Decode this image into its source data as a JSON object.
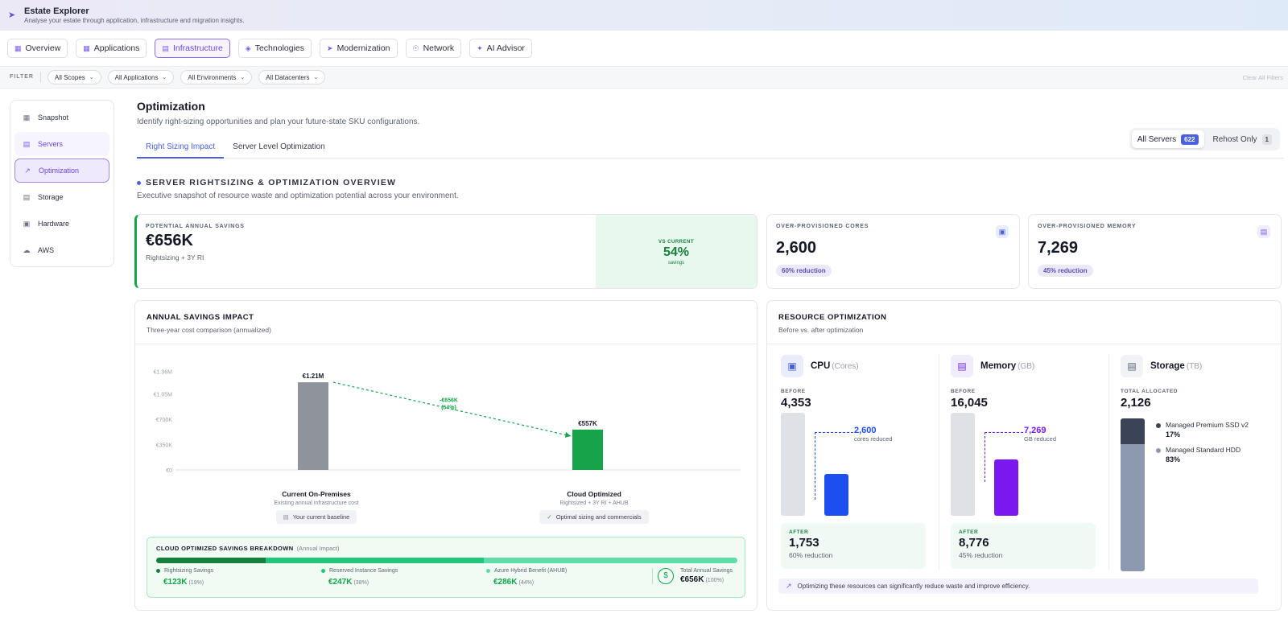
{
  "app": {
    "title": "Estate Explorer",
    "subtitle": "Analyse your estate through application, infrastructure and migration insights."
  },
  "nav_tabs": [
    {
      "label": "Overview",
      "icon": "grid-icon"
    },
    {
      "label": "Applications",
      "icon": "apps-icon"
    },
    {
      "label": "Infrastructure",
      "icon": "server-icon",
      "active": true
    },
    {
      "label": "Technologies",
      "icon": "layers-icon"
    },
    {
      "label": "Modernization",
      "icon": "rocket-icon"
    },
    {
      "label": "Network",
      "icon": "network-icon"
    },
    {
      "label": "AI Advisor",
      "icon": "sparkle-icon"
    }
  ],
  "filters": {
    "label": "FILTER",
    "scopes": "All Scopes",
    "applications": "All Applications",
    "environments": "All Environments",
    "datacenters": "All Datacenters",
    "clear": "Clear All Filters"
  },
  "sidebar": {
    "items": [
      {
        "label": "Snapshot",
        "icon": "grid-icon"
      },
      {
        "label": "Servers",
        "icon": "server-icon"
      },
      {
        "label": "Optimization",
        "icon": "trend-icon",
        "active": true
      },
      {
        "label": "Storage",
        "icon": "drive-icon"
      },
      {
        "label": "Hardware",
        "icon": "chip-icon"
      },
      {
        "label": "AWS",
        "icon": "cloud-icon"
      }
    ]
  },
  "page": {
    "title": "Optimization",
    "subtitle": "Identify right-sizing opportunities and plan your future-state SKU configurations."
  },
  "subtabs": {
    "right_sizing": "Right Sizing Impact",
    "server_level": "Server Level Optimization"
  },
  "segment": {
    "all_label": "All Servers",
    "all_count": "622",
    "rehost_label": "Rehost Only",
    "rehost_count": "1"
  },
  "section": {
    "title": "SERVER RIGHTSIZING & OPTIMIZATION OVERVIEW",
    "subtitle": "Executive snapshot of resource waste and optimization potential across your environment."
  },
  "kpis": {
    "savings": {
      "label": "POTENTIAL ANNUAL SAVINGS",
      "value": "€656K",
      "note": "Rightsizing + 3Y RI",
      "vs_label": "VS CURRENT",
      "vs_value": "54%",
      "vs_note": "savings"
    },
    "cores": {
      "label": "OVER-PROVISIONED CORES",
      "value": "2,600",
      "pill": "60% reduction"
    },
    "memory": {
      "label": "OVER-PROVISIONED MEMORY",
      "value": "7,269",
      "pill": "45% reduction"
    }
  },
  "annual": {
    "title": "ANNUAL SAVINGS IMPACT",
    "subtitle": "Three-year cost comparison (annualized)",
    "left_name": "Current On-Premises",
    "left_desc": "Existing annual infrastructure cost",
    "left_tag": "Your current baseline",
    "right_name": "Cloud Optimized",
    "right_desc": "Rightsized + 3Y RI + AHUB",
    "right_tag": "Optimal sizing and commercials",
    "delta_line1": "-€656K",
    "delta_line2": "(54%)"
  },
  "chart_data": {
    "type": "bar",
    "categories": [
      "Current On-Premises",
      "Cloud Optimized"
    ],
    "values": [
      1.21,
      0.557
    ],
    "value_labels": [
      "€1.21M",
      "€557K"
    ],
    "ytick_values": [
      0,
      0.35,
      0.7,
      1.05,
      1.36
    ],
    "ytick_labels": [
      "€0",
      "€350K",
      "€700K",
      "€1.05M",
      "€1.36M"
    ],
    "ylim": [
      0,
      1.4
    ],
    "colors": [
      "#8e939c",
      "#16a34a"
    ],
    "title": "",
    "xlabel": "",
    "ylabel": ""
  },
  "breakdown": {
    "title": "CLOUD OPTIMIZED SAVINGS BREAKDOWN",
    "subtitle": "(Annual Impact)",
    "items": [
      {
        "name": "Rightsizing Savings",
        "value": "€123K",
        "pct": "(19%)",
        "fraction": 0.19,
        "color": "#15803d"
      },
      {
        "name": "Reserved Instance Savings",
        "value": "€247K",
        "pct": "(38%)",
        "fraction": 0.38,
        "color": "#22c57a"
      },
      {
        "name": "Azure Hybrid Benefit (AHUB)",
        "value": "€286K",
        "pct": "(44%)",
        "fraction": 0.44,
        "color": "#5eddaa"
      }
    ],
    "total_label": "Total Annual Savings",
    "total_value": "€656K",
    "total_pct": "(100%)"
  },
  "resource": {
    "title": "RESOURCE OPTIMIZATION",
    "subtitle": "Before vs. after optimization",
    "cpu": {
      "name": "CPU",
      "unit": "(Cores)",
      "before_label": "BEFORE",
      "before": "4,353",
      "reduced": "2,600",
      "reduced_label": "cores reduced",
      "after_label": "AFTER",
      "after": "1,753",
      "after_note": "60% reduction",
      "before_num": 4353,
      "after_num": 1753
    },
    "memory": {
      "name": "Memory",
      "unit": "(GB)",
      "before_label": "BEFORE",
      "before": "16,045",
      "reduced": "7,269",
      "reduced_label": "GB reduced",
      "after_label": "AFTER",
      "after": "8,776",
      "after_note": "45% reduction",
      "before_num": 16045,
      "after_num": 8776
    },
    "storage": {
      "name": "Storage",
      "unit": "(TB)",
      "total_label": "TOTAL ALLOCATED",
      "total": "2,126",
      "items": [
        {
          "name": "Managed Premium SSD v2",
          "pct": "17%",
          "fraction": 0.17,
          "color": "#3b4457"
        },
        {
          "name": "Managed Standard HDD",
          "pct": "83%",
          "fraction": 0.83,
          "color": "#8c99b0"
        }
      ]
    },
    "tip": "Optimizing these resources can significantly reduce waste and improve efficiency."
  }
}
